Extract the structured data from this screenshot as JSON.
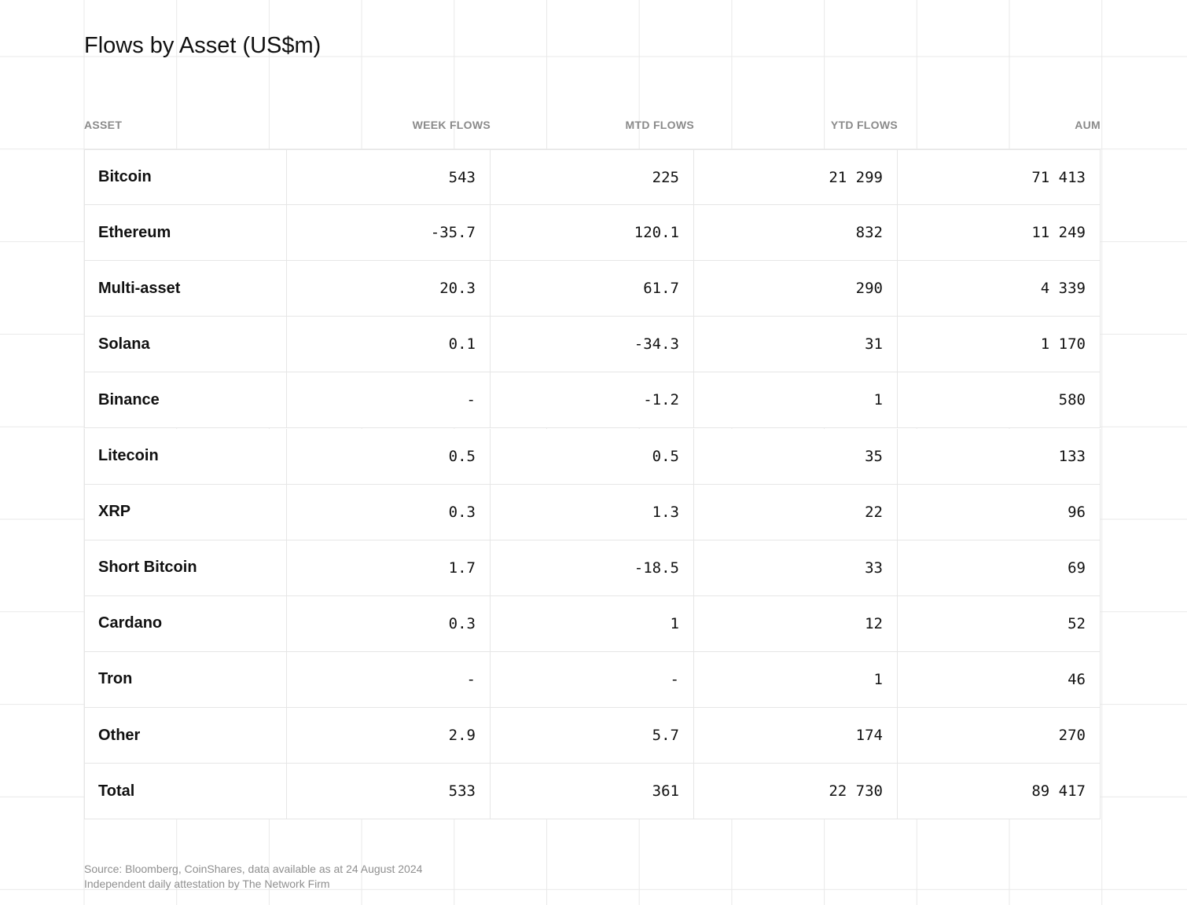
{
  "header": {
    "title": "Flows by Asset (US$m)"
  },
  "table": {
    "columns": [
      "ASSET",
      "WEEK FLOWS",
      "MTD FLOWS",
      "YTD FLOWS",
      "AUM"
    ],
    "rows": [
      [
        "Bitcoin",
        "543",
        "225",
        "21 299",
        "71 413"
      ],
      [
        "Ethereum",
        "-35.7",
        "120.1",
        "832",
        "11 249"
      ],
      [
        "Multi-asset",
        "20.3",
        "61.7",
        "290",
        "4 339"
      ],
      [
        "Solana",
        "0.1",
        "-34.3",
        "31",
        "1 170"
      ],
      [
        "Binance",
        "-",
        "-1.2",
        "1",
        "580"
      ],
      [
        "Litecoin",
        "0.5",
        "0.5",
        "35",
        "133"
      ],
      [
        "XRP",
        "0.3",
        "1.3",
        "22",
        "96"
      ],
      [
        "Short Bitcoin",
        "1.7",
        "-18.5",
        "33",
        "69"
      ],
      [
        "Cardano",
        "0.3",
        "1",
        "12",
        "52"
      ],
      [
        "Tron",
        "-",
        "-",
        "1",
        "46"
      ],
      [
        "Other",
        "2.9",
        "5.7",
        "174",
        "270"
      ],
      [
        "Total",
        "533",
        "361",
        "22 730",
        "89 417"
      ]
    ]
  },
  "footer": {
    "source": "Source: Bloomberg, CoinShares, data available as at 24 August 2024",
    "attestation": "Independent daily attestation by The Network Firm"
  }
}
